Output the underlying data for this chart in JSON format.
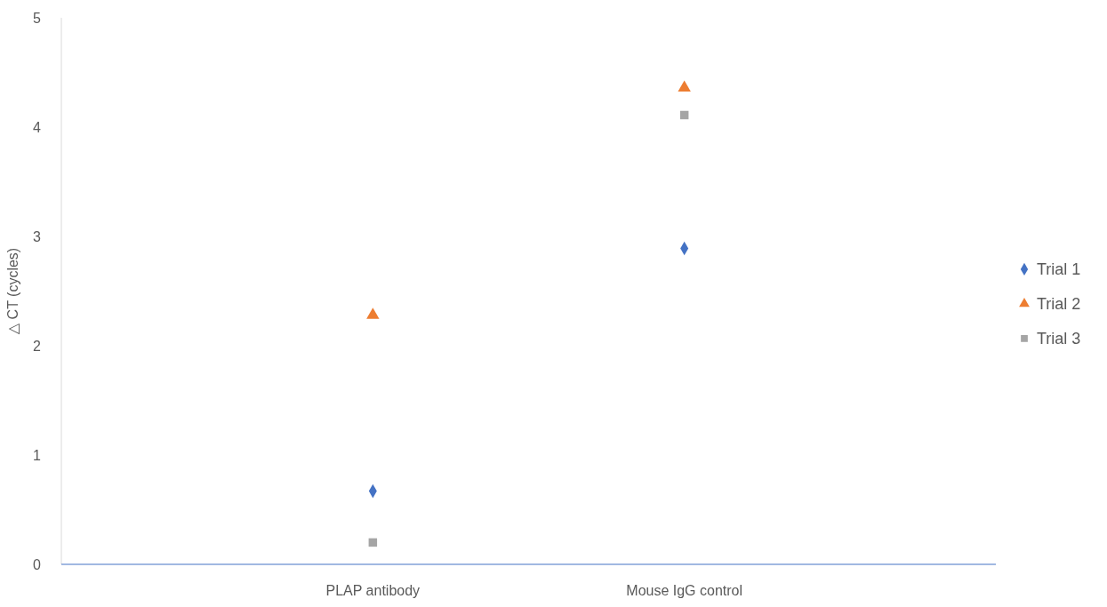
{
  "chart_data": {
    "type": "scatter",
    "ylabel": "△ CT (cycles)",
    "categories": [
      "PLAP antibody",
      "Mouse IgG control"
    ],
    "ylim": [
      0,
      5
    ],
    "yticks": [
      0,
      1,
      2,
      3,
      4,
      5
    ],
    "legend": "right",
    "series": [
      {
        "name": "Trial 1",
        "color": "#4472c4",
        "marker": "diamond",
        "values": [
          0.67,
          2.89
        ]
      },
      {
        "name": "Trial 2",
        "color": "#ed7d31",
        "marker": "triangle",
        "values": [
          2.28,
          4.36
        ]
      },
      {
        "name": "Trial 3",
        "color": "#a5a5a5",
        "marker": "square",
        "values": [
          0.2,
          4.11
        ]
      }
    ]
  }
}
